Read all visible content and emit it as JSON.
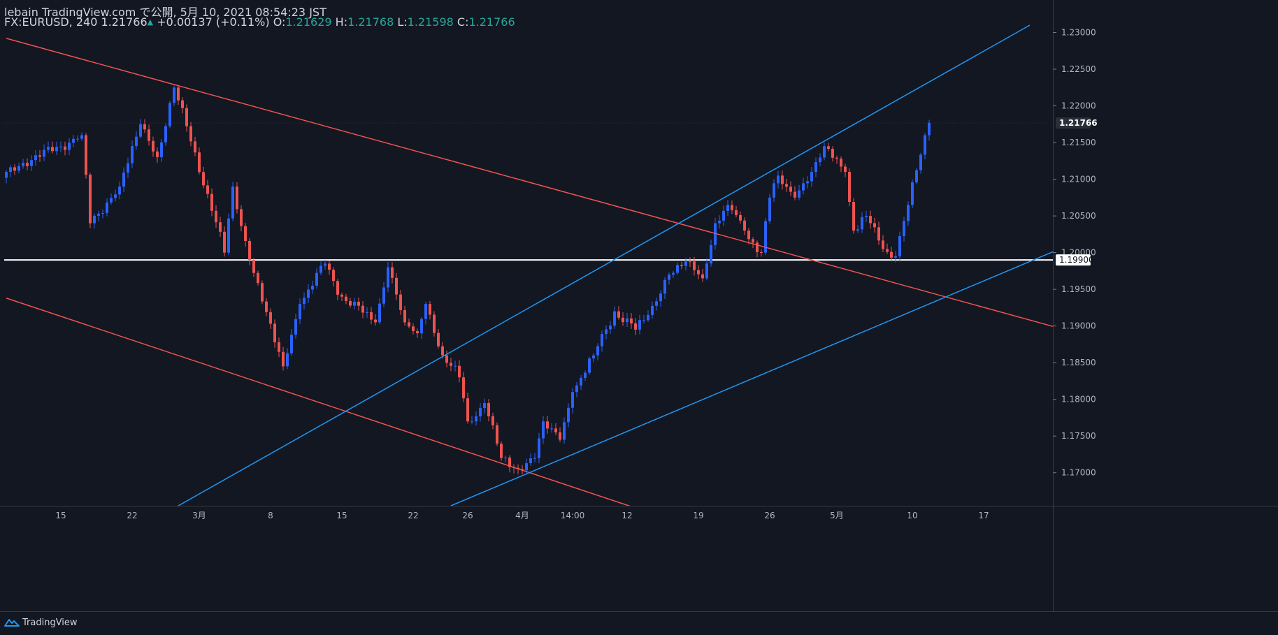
{
  "header": {
    "publisher": "lebain TradingView.com で公開, 5月 10, 2021 08:54:23 JST",
    "symbol": "FX:EURUSD, 240",
    "last": "1.21766",
    "change": "+0.00137 (+0.11%)",
    "o_label": "O:",
    "o_value": "1.21629",
    "h_label": "H:",
    "h_value": "1.21768",
    "l_label": "L:",
    "l_value": "1.21598",
    "c_label": "C:",
    "c_value": "1.21766"
  },
  "footer": {
    "brand": "TradingView",
    "logo_icon": "tradingview-logo-icon"
  },
  "colors": {
    "background": "#131722",
    "up": "#2962ff",
    "down": "#ef5350",
    "green_text": "#26a69a",
    "channel_down": "#ef5350",
    "channel_up": "#2196f3",
    "support": "#ffffff"
  },
  "chart_data": {
    "type": "candlestick",
    "title": "",
    "xlabel": "",
    "ylabel": "",
    "ylim": [
      1.1655,
      1.231
    ],
    "y_ticks": [
      "1.23000",
      "1.22500",
      "1.22000",
      "1.21500",
      "1.21000",
      "1.20500",
      "1.20000",
      "1.19500",
      "1.19000",
      "1.18500",
      "1.18000",
      "1.17500",
      "1.17000"
    ],
    "y_tick_values": [
      1.23,
      1.225,
      1.22,
      1.215,
      1.21,
      1.205,
      1.2,
      1.195,
      1.19,
      1.185,
      1.18,
      1.175,
      1.17
    ],
    "x_ticks": [
      "15",
      "22",
      "3月",
      "8",
      "15",
      "22",
      "26",
      "4月",
      "14:00",
      "12",
      "19",
      "26",
      "5月",
      "10",
      "17"
    ],
    "x_tick_index": [
      13,
      30,
      46,
      63,
      80,
      97,
      110,
      123,
      135,
      148,
      165,
      182,
      198,
      216,
      233
    ],
    "bar_count": 250,
    "last_price_label": "1.21766",
    "last_price": 1.21766,
    "support_label": "1.19900",
    "support_price": 1.199,
    "key_points": [
      [
        0,
        1.211
      ],
      [
        18,
        1.216
      ],
      [
        20,
        1.204
      ],
      [
        27,
        1.209
      ],
      [
        32,
        1.2175
      ],
      [
        36,
        1.213
      ],
      [
        40,
        1.2225
      ],
      [
        48,
        1.208
      ],
      [
        52,
        1.2
      ],
      [
        54,
        1.209
      ],
      [
        58,
        1.199
      ],
      [
        66,
        1.1845
      ],
      [
        70,
        1.193
      ],
      [
        76,
        1.1985
      ],
      [
        80,
        1.194
      ],
      [
        88,
        1.1905
      ],
      [
        91,
        1.198
      ],
      [
        95,
        1.1905
      ],
      [
        98,
        1.189
      ],
      [
        100,
        1.193
      ],
      [
        104,
        1.186
      ],
      [
        108,
        1.183
      ],
      [
        110,
        1.177
      ],
      [
        114,
        1.1795
      ],
      [
        118,
        1.172
      ],
      [
        122,
        1.1705
      ],
      [
        126,
        1.172
      ],
      [
        128,
        1.177
      ],
      [
        132,
        1.1745
      ],
      [
        135,
        1.181
      ],
      [
        140,
        1.186
      ],
      [
        145,
        1.192
      ],
      [
        150,
        1.1895
      ],
      [
        153,
        1.1915
      ],
      [
        158,
        1.197
      ],
      [
        162,
        1.1988
      ],
      [
        166,
        1.1965
      ],
      [
        169,
        1.204
      ],
      [
        172,
        1.2065
      ],
      [
        176,
        1.203
      ],
      [
        180,
        1.2
      ],
      [
        182,
        1.2075
      ],
      [
        184,
        1.2105
      ],
      [
        188,
        1.2075
      ],
      [
        192,
        1.211
      ],
      [
        195,
        1.2145
      ],
      [
        200,
        1.211
      ],
      [
        202,
        1.203
      ],
      [
        205,
        1.205
      ],
      [
        209,
        1.2005
      ],
      [
        212,
        1.1995
      ],
      [
        215,
        1.2065
      ],
      [
        219,
        1.216
      ],
      [
        220,
        1.2177
      ]
    ],
    "trend_lines": [
      {
        "name": "",
        "color": "#ef5350",
        "points": [
          [
            0,
            1.2292
          ],
          [
            300,
            1.182
          ]
        ]
      },
      {
        "name": "",
        "color": "#ef5350",
        "points": [
          [
            0,
            1.1938
          ],
          [
            150,
            1.1652
          ]
        ]
      },
      {
        "name": "",
        "color": "#2196f3",
        "points": [
          [
            41,
            1.1655
          ],
          [
            244,
            1.231
          ]
        ]
      },
      {
        "name": "",
        "color": "#2196f3",
        "points": [
          [
            106,
            1.1655
          ],
          [
            300,
            1.2123
          ]
        ]
      }
    ],
    "horizontal_lines": [
      {
        "name": "",
        "color": "#ffffff",
        "price": 1.199
      }
    ]
  }
}
